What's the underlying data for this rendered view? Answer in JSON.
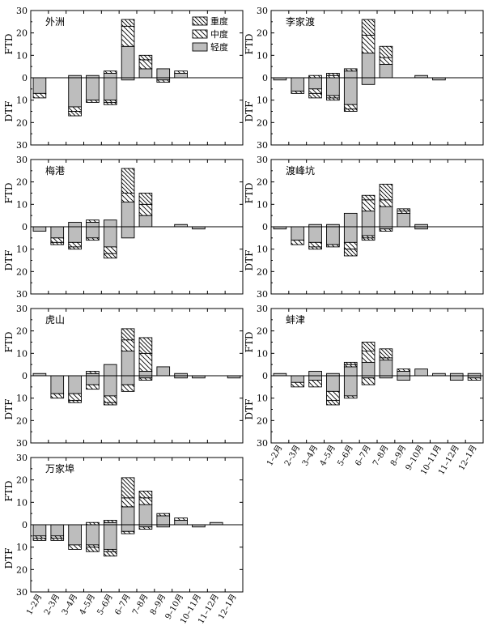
{
  "figure": {
    "y_axis_upper_label": "FTD",
    "y_axis_lower_label": "DTF",
    "legend": {
      "heavy": "重度",
      "moderate": "中度",
      "light": "轻度"
    },
    "colors": {
      "light_fill": "#bdbdbd",
      "stroke": "#000000",
      "background": "#ffffff"
    }
  },
  "chart_data": {
    "type": "bar",
    "stacked": true,
    "categories": [
      "1–2月",
      "2–3月",
      "3–4月",
      "4–5月",
      "5–6月",
      "6–7月",
      "7–8月",
      "8–9月",
      "9–10月",
      "10–11月",
      "11–12月",
      "12–1月"
    ],
    "upper_series_name": "FTD",
    "lower_series_name": "DTF",
    "y_ticks": [
      30,
      20,
      10,
      0,
      10,
      20,
      30
    ],
    "ylim_upper": [
      0,
      30
    ],
    "ylim_lower": [
      0,
      30
    ],
    "severity_order": [
      "light",
      "moderate",
      "heavy"
    ],
    "stations": [
      {
        "name": "外洲",
        "ftd": {
          "light": [
            0,
            0,
            1,
            1,
            2,
            14,
            4,
            4,
            2,
            0,
            0,
            0
          ],
          "moderate": [
            0,
            0,
            0,
            0,
            1,
            9,
            4,
            0,
            1,
            0,
            0,
            0
          ],
          "heavy": [
            0,
            0,
            0,
            0,
            0,
            3,
            2,
            0,
            0,
            0,
            0,
            0
          ]
        },
        "dtf": {
          "light": [
            7,
            0,
            13,
            10,
            10,
            1,
            0,
            1,
            0,
            0,
            0,
            0
          ],
          "moderate": [
            2,
            0,
            2,
            1,
            1,
            0,
            0,
            1,
            0,
            0,
            0,
            0
          ],
          "heavy": [
            0,
            0,
            2,
            0,
            1,
            0,
            0,
            0,
            0,
            0,
            0,
            0
          ]
        }
      },
      {
        "name": "李家渡",
        "ftd": {
          "light": [
            0,
            0,
            0,
            0,
            3,
            11,
            6,
            0,
            1,
            0,
            0,
            0
          ],
          "moderate": [
            0,
            0,
            1,
            1,
            1,
            8,
            3,
            0,
            0,
            0,
            0,
            0
          ],
          "heavy": [
            0,
            0,
            0,
            1,
            0,
            7,
            5,
            0,
            0,
            0,
            0,
            0
          ]
        },
        "dtf": {
          "light": [
            1,
            6,
            5,
            8,
            12,
            3,
            0,
            0,
            0,
            1,
            0,
            0
          ],
          "moderate": [
            0,
            1,
            2,
            1,
            2,
            0,
            0,
            0,
            0,
            0,
            0,
            0
          ],
          "heavy": [
            0,
            0,
            2,
            1,
            1,
            0,
            0,
            0,
            0,
            0,
            0,
            0
          ]
        }
      },
      {
        "name": "梅港",
        "ftd": {
          "light": [
            0,
            0,
            2,
            2,
            3,
            11,
            5,
            0,
            1,
            0,
            0,
            0
          ],
          "moderate": [
            0,
            0,
            0,
            1,
            0,
            4,
            5,
            0,
            0,
            0,
            0,
            0
          ],
          "heavy": [
            0,
            0,
            0,
            0,
            0,
            11,
            5,
            0,
            0,
            0,
            0,
            0
          ]
        },
        "dtf": {
          "light": [
            2,
            5,
            7,
            5,
            9,
            5,
            0,
            0,
            0,
            1,
            0,
            0
          ],
          "moderate": [
            0,
            2,
            2,
            1,
            3,
            0,
            0,
            0,
            0,
            0,
            0,
            0
          ],
          "heavy": [
            0,
            1,
            1,
            0,
            2,
            0,
            0,
            0,
            0,
            0,
            0,
            0
          ]
        }
      },
      {
        "name": "渡峰坑",
        "ftd": {
          "light": [
            0,
            0,
            1,
            1,
            6,
            7,
            9,
            6,
            1,
            0,
            0,
            0
          ],
          "moderate": [
            0,
            0,
            0,
            0,
            0,
            5,
            3,
            1,
            0,
            0,
            0,
            0
          ],
          "heavy": [
            0,
            0,
            0,
            0,
            0,
            2,
            7,
            1,
            0,
            0,
            0,
            0
          ]
        },
        "dtf": {
          "light": [
            1,
            6,
            7,
            8,
            7,
            4,
            1,
            0,
            1,
            0,
            0,
            0
          ],
          "moderate": [
            0,
            2,
            2,
            1,
            3,
            1,
            1,
            0,
            0,
            0,
            0,
            0
          ],
          "heavy": [
            0,
            0,
            1,
            0,
            3,
            1,
            0,
            0,
            0,
            0,
            0,
            0
          ]
        }
      },
      {
        "name": "虎山",
        "ftd": {
          "light": [
            1,
            0,
            0,
            1,
            5,
            11,
            2,
            4,
            1,
            0,
            0,
            0
          ],
          "moderate": [
            0,
            0,
            0,
            1,
            0,
            5,
            8,
            0,
            0,
            0,
            0,
            0
          ],
          "heavy": [
            0,
            0,
            0,
            0,
            0,
            5,
            7,
            0,
            0,
            0,
            0,
            0
          ]
        },
        "dtf": {
          "light": [
            0,
            8,
            8,
            4,
            9,
            4,
            1,
            0,
            1,
            1,
            0,
            1
          ],
          "moderate": [
            0,
            2,
            3,
            2,
            3,
            3,
            1,
            0,
            0,
            0,
            0,
            0
          ],
          "heavy": [
            0,
            0,
            1,
            0,
            1,
            0,
            0,
            0,
            0,
            0,
            0,
            0
          ]
        }
      },
      {
        "name": "蚌津",
        "ftd": {
          "light": [
            1,
            0,
            2,
            1,
            4,
            6,
            7,
            2,
            3,
            1,
            1,
            1
          ],
          "moderate": [
            0,
            0,
            0,
            0,
            1,
            5,
            1,
            1,
            0,
            0,
            0,
            0
          ],
          "heavy": [
            0,
            0,
            0,
            0,
            1,
            4,
            4,
            0,
            0,
            0,
            0,
            0
          ]
        },
        "dtf": {
          "light": [
            0,
            3,
            2,
            7,
            9,
            1,
            1,
            2,
            0,
            0,
            2,
            1
          ],
          "moderate": [
            0,
            2,
            3,
            4,
            1,
            3,
            0,
            0,
            0,
            0,
            0,
            1
          ],
          "heavy": [
            0,
            0,
            0,
            2,
            0,
            0,
            0,
            0,
            0,
            0,
            0,
            0
          ]
        }
      },
      {
        "name": "万家埠",
        "ftd": {
          "light": [
            0,
            0,
            0,
            0,
            1,
            8,
            9,
            4,
            2,
            0,
            1,
            0
          ],
          "moderate": [
            0,
            0,
            0,
            0,
            0,
            4,
            3,
            1,
            1,
            0,
            0,
            0
          ],
          "heavy": [
            0,
            0,
            0,
            1,
            1,
            9,
            3,
            0,
            0,
            0,
            0,
            0
          ]
        },
        "dtf": {
          "light": [
            5,
            5,
            9,
            9,
            11,
            3,
            1,
            1,
            0,
            1,
            0,
            0
          ],
          "moderate": [
            1,
            1,
            2,
            1,
            1,
            1,
            1,
            0,
            0,
            0,
            0,
            0
          ],
          "heavy": [
            1,
            1,
            0,
            2,
            2,
            0,
            0,
            0,
            0,
            0,
            0,
            0
          ]
        }
      }
    ]
  }
}
